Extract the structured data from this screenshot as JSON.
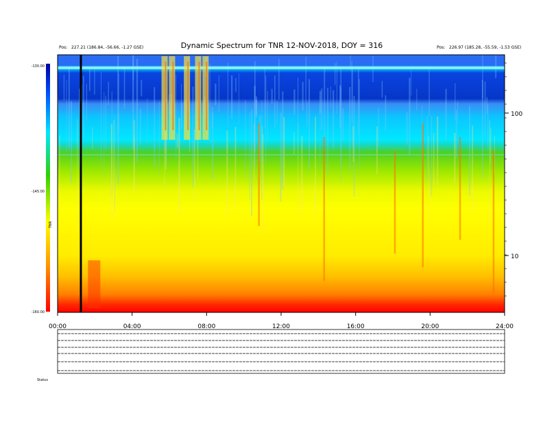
{
  "chart_data": {
    "type": "heatmap",
    "title": "Dynamic Spectrum for TNR 12-NOV-2018, DOY = 316",
    "header_left": [
      "Pos:",
      "227.21 (186.84, -56.66, -1.27 GSE)"
    ],
    "header_right": [
      "Pos:",
      "226.97 (185.28, -55.59, -1.53 GSE)"
    ],
    "x_axis": {
      "ticks": [
        "00:00",
        "04:00",
        "08:00",
        "12:00",
        "16:00",
        "20:00",
        "24:00"
      ],
      "range_hours": [
        0,
        24
      ]
    },
    "y_axis_right": {
      "scale": "log",
      "ticks": [
        "100",
        "10"
      ]
    },
    "colorbar": {
      "label": "TNR",
      "ticks": [
        "-130.00",
        "-145.00",
        "-160.00"
      ],
      "range": [
        -160,
        -130
      ],
      "colors": [
        "#0000a0",
        "#0050ff",
        "#00e8ff",
        "#30d000",
        "#ffff00",
        "#ff9000",
        "#ff0000"
      ]
    },
    "bands_top_to_bottom": [
      {
        "level": -131,
        "color": "#2060f0"
      },
      {
        "level": -132,
        "color": "#0040e8"
      },
      {
        "level": -137,
        "color": "#00e6ff"
      },
      {
        "level": -141,
        "color": "#40d020"
      },
      {
        "level": -143,
        "color": "#b8f000"
      },
      {
        "level": -146,
        "color": "#ffff00"
      },
      {
        "level": -152,
        "color": "#ffd000"
      },
      {
        "level": -157,
        "color": "#ff7000"
      },
      {
        "level": -159,
        "color": "#ff1000"
      }
    ],
    "bursts_hours": [
      2.0,
      5.8,
      6.2,
      7.0,
      7.6,
      8.0,
      10.8,
      14.3,
      18.1,
      19.6,
      21.6,
      23.4
    ],
    "data_gap_hour": 1.25,
    "panel_label_bottom": "Status"
  }
}
